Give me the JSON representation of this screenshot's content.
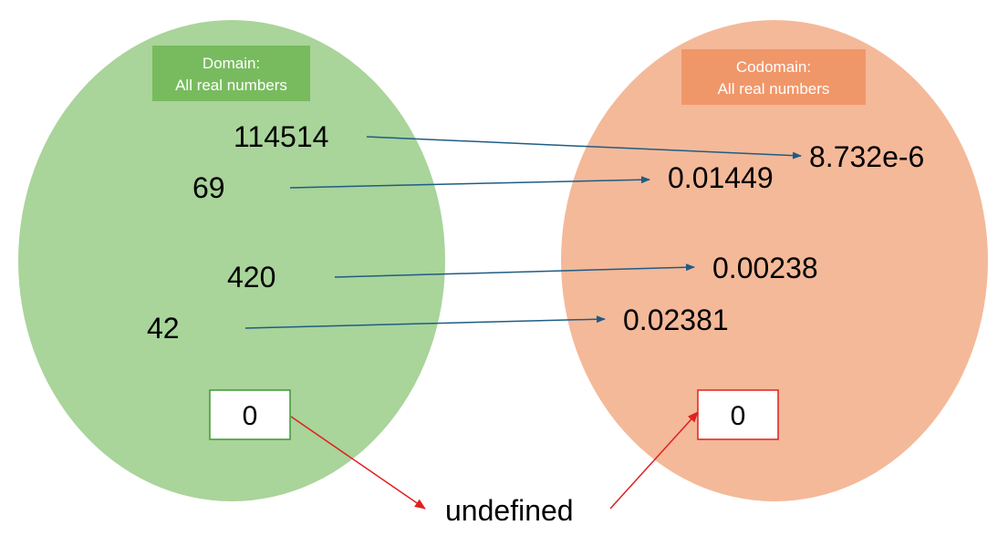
{
  "domain_set": {
    "label_line1": "Domain:",
    "label_line2": "All real numbers",
    "fill_color": "#a9d49a",
    "label_color": "#78bb5e",
    "zero_border_color": "#3f9a35"
  },
  "codomain_set": {
    "label_line1": "Codomain:",
    "label_line2": "All real numbers",
    "fill_color": "#f4b999",
    "label_color": "#f0976a",
    "zero_border_color": "#e02020"
  },
  "mappings": [
    {
      "input": "114514",
      "output": "8.732e-6"
    },
    {
      "input": "69",
      "output": "0.01449"
    },
    {
      "input": "420",
      "output": "0.00238"
    },
    {
      "input": "42",
      "output": "0.02381"
    }
  ],
  "zero_case": {
    "input": "0",
    "intermediate": "undefined",
    "output": "0"
  },
  "arrow_color": "#1f5c84",
  "undefined_arrow_color": "#e02020"
}
